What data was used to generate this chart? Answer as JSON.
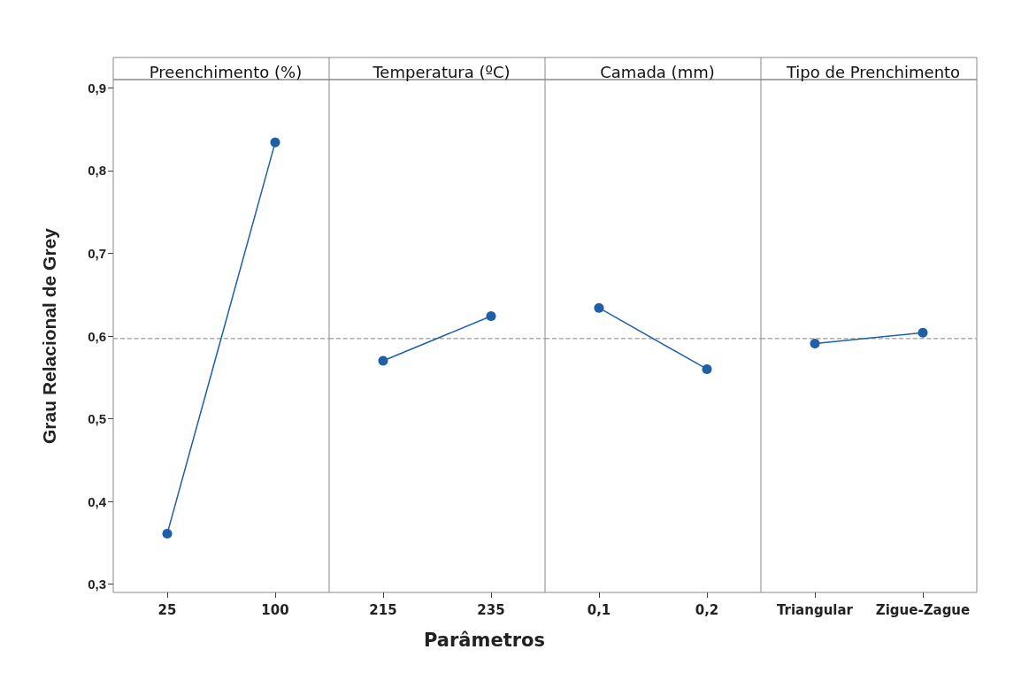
{
  "chart_data": [
    {
      "type": "line",
      "title": "Preenchimento (%)",
      "ylabel": "Grau Relacional de Grey",
      "categories": [
        "25",
        "100"
      ],
      "series": [
        {
          "color": "#1f5fa8",
          "values": [
            0.361,
            0.834
          ]
        }
      ],
      "ylim": [
        0.29,
        0.91
      ],
      "yticks": [
        {
          "value": 0.3,
          "label": "0,3"
        },
        {
          "value": 0.4,
          "label": "0,4"
        },
        {
          "value": 0.5,
          "label": "0,5"
        },
        {
          "value": 0.6,
          "label": "0,6"
        },
        {
          "value": 0.7,
          "label": "0,7"
        },
        {
          "value": 0.8,
          "label": "0,8"
        },
        {
          "value": 0.9,
          "label": "0,9"
        }
      ],
      "ref_lines": [
        {
          "axis": "y",
          "value": 0.597,
          "color": "#999999",
          "line_style": "dashed"
        }
      ],
      "marker": "circle"
    },
    {
      "type": "line",
      "title": "Temperatura (ºC)",
      "xlabel": "Parâmetros",
      "categories": [
        "215",
        "235"
      ],
      "series": [
        {
          "color": "#1f5fa8",
          "values": [
            0.57,
            0.624
          ]
        }
      ],
      "ylim": [
        0.29,
        0.91
      ],
      "tick_labels": "x",
      "ref_lines": [
        {
          "axis": "y",
          "value": 0.597,
          "color": "#999999",
          "line_style": "dashed"
        }
      ],
      "marker": "circle"
    },
    {
      "type": "line",
      "title": "Camada (mm)",
      "categories": [
        "0,1",
        "0,2"
      ],
      "series": [
        {
          "color": "#1f5fa8",
          "values": [
            0.634,
            0.56
          ]
        }
      ],
      "ylim": [
        0.29,
        0.91
      ],
      "tick_labels": "x",
      "ref_lines": [
        {
          "axis": "y",
          "value": 0.597,
          "color": "#999999",
          "line_style": "dashed"
        }
      ],
      "marker": "circle"
    },
    {
      "type": "line",
      "title": "Tipo de Prenchimento",
      "categories": [
        "Triangular",
        "Zigue-Zague"
      ],
      "series": [
        {
          "color": "#1f5fa8",
          "values": [
            0.591,
            0.604
          ]
        }
      ],
      "ylim": [
        0.29,
        0.91
      ],
      "tick_labels": "x",
      "ref_lines": [
        {
          "axis": "y",
          "value": 0.597,
          "color": "#999999",
          "line_style": "dashed"
        }
      ],
      "marker": "circle"
    }
  ]
}
